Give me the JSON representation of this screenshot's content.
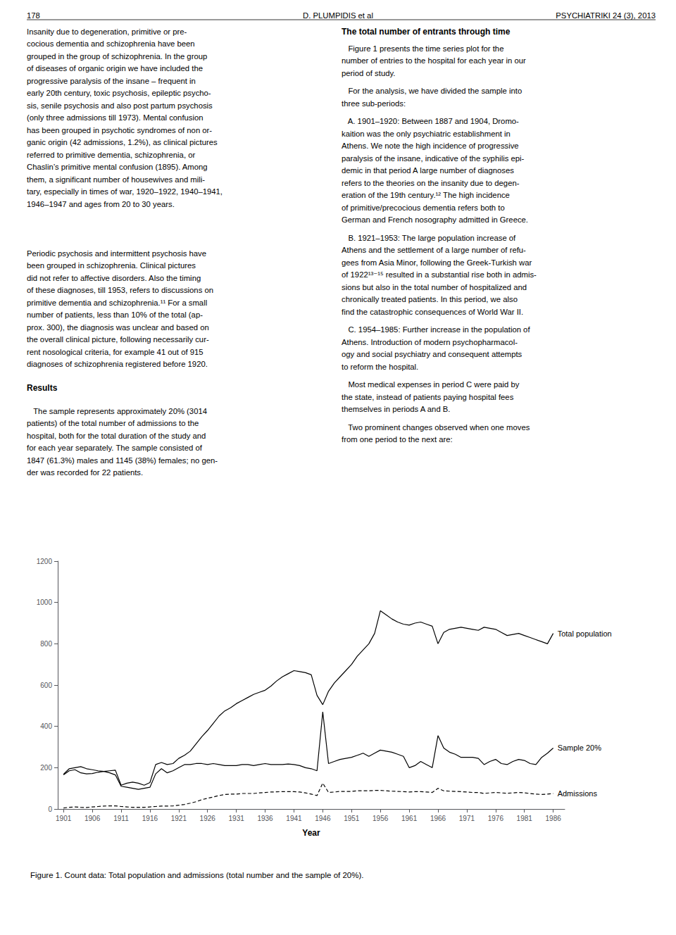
{
  "chart_data": {
    "type": "line",
    "title": "Figure 1. Count data: Total population and admissions (total number and the sample of 20%).",
    "x_label": "Year",
    "x": [
      1901,
      1902,
      1903,
      1904,
      1905,
      1906,
      1907,
      1908,
      1909,
      1910,
      1911,
      1912,
      1913,
      1914,
      1915,
      1916,
      1917,
      1918,
      1919,
      1920,
      1921,
      1922,
      1923,
      1924,
      1925,
      1926,
      1927,
      1928,
      1929,
      1930,
      1931,
      1932,
      1933,
      1934,
      1935,
      1936,
      1937,
      1938,
      1939,
      1940,
      1941,
      1942,
      1943,
      1944,
      1945,
      1946,
      1947,
      1948,
      1949,
      1950,
      1951,
      1952,
      1953,
      1954,
      1955,
      1956,
      1957,
      1958,
      1959,
      1960,
      1961,
      1962,
      1963,
      1964,
      1965,
      1966,
      1967,
      1968,
      1969,
      1970,
      1971,
      1972,
      1973,
      1974,
      1975,
      1976,
      1977,
      1978,
      1979,
      1980,
      1981,
      1982,
      1983,
      1984,
      1985,
      1986
    ],
    "series": [
      {
        "name": "Total population",
        "color": "#000000",
        "line_style": "solid",
        "values": [
          165,
          185,
          190,
          175,
          170,
          172,
          178,
          182,
          185,
          188,
          115,
          125,
          130,
          125,
          115,
          128,
          215,
          225,
          215,
          220,
          245,
          260,
          280,
          315,
          350,
          380,
          415,
          450,
          475,
          490,
          510,
          525,
          540,
          555,
          565,
          575,
          595,
          620,
          640,
          655,
          670,
          665,
          660,
          650,
          550,
          505,
          570,
          610,
          640,
          670,
          700,
          740,
          770,
          800,
          850,
          960,
          940,
          920,
          905,
          895,
          890,
          900,
          905,
          895,
          885,
          800,
          855,
          870,
          875,
          880,
          875,
          870,
          865,
          880,
          875,
          870,
          855,
          840,
          845,
          850,
          840,
          830,
          820,
          810,
          800,
          850
        ]
      },
      {
        "name": "Sample 20%",
        "color": "#000000",
        "line_style": "solid",
        "values": [
          168,
          195,
          200,
          205,
          195,
          190,
          185,
          182,
          175,
          165,
          110,
          105,
          100,
          95,
          100,
          105,
          170,
          195,
          175,
          185,
          200,
          215,
          215,
          220,
          220,
          215,
          220,
          215,
          210,
          210,
          210,
          215,
          215,
          210,
          215,
          220,
          215,
          215,
          215,
          218,
          215,
          210,
          200,
          195,
          185,
          470,
          220,
          230,
          240,
          245,
          250,
          260,
          270,
          255,
          270,
          285,
          280,
          275,
          265,
          255,
          200,
          210,
          230,
          215,
          200,
          355,
          295,
          275,
          265,
          250,
          250,
          250,
          245,
          215,
          230,
          240,
          220,
          215,
          230,
          240,
          235,
          220,
          215,
          250,
          270,
          295
        ]
      },
      {
        "name": "Admissions",
        "color": "#000000",
        "line_style": "dashed",
        "values": [
          5,
          8,
          10,
          8,
          7,
          10,
          12,
          14,
          15,
          15,
          12,
          10,
          8,
          8,
          8,
          10,
          12,
          14,
          14,
          15,
          18,
          22,
          28,
          35,
          45,
          52,
          58,
          65,
          70,
          72,
          72,
          75,
          75,
          75,
          78,
          80,
          82,
          83,
          84,
          84,
          84,
          82,
          78,
          72,
          65,
          125,
          80,
          82,
          85,
          85,
          85,
          88,
          88,
          88,
          90,
          90,
          88,
          86,
          85,
          84,
          82,
          84,
          84,
          82,
          80,
          100,
          88,
          86,
          85,
          84,
          82,
          80,
          80,
          75,
          78,
          80,
          78,
          76,
          78,
          80,
          78,
          75,
          72,
          70,
          72,
          75
        ]
      }
    ],
    "xlim": [
      1900,
      1988
    ],
    "xticks": [
      1901,
      1906,
      1911,
      1916,
      1921,
      1926,
      1931,
      1936,
      1941,
      1946,
      1951,
      1956,
      1961,
      1966,
      1971,
      1976,
      1981,
      1986
    ],
    "ylim": [
      0,
      1200
    ],
    "yticks": [
      0,
      200,
      400,
      600,
      800,
      1000,
      1200
    ],
    "grid": false,
    "annotations": [
      "178",
      "D. PLUMPIDIS et al",
      "PSYCHIATRIKI 24 (3), 2013",
      "Insanity due to degeneration, primitive or pre-\ncocious dementia and schizophrenia have been\ngrouped in the group of schizophrenia. In the group\nof diseases of organic origin we have included the\nprogressive paralysis of the insane – frequent in\nearly 20th century, toxic psychosis, epileptic psycho-\nsis, senile psychosis and also post partum psychosis\n(only three admissions till 1973). Mental confusion\nhas been grouped in psychotic syndromes of non or-\nganic origin (42 admissions, 1.2%), as clinical pictures\nreferred to primitive dementia, schizophrenia, or\nChaslin’s primitive mental confusion (1895). Among\nthem, a significant number of housewives and mili-\ntary, especially in times of war, 1920–1922, 1940–1941,\n1946–1947 and ages from 20 to 30 years.",
      "Periodic psychosis and intermittent psychosis have\nbeen grouped in schizophrenia. Clinical pictures\ndid not refer to affective disorders. Also the timing\nof these diagnoses, till 1953, refers to discussions on\nprimitive dementia and schizophrenia.¹¹ For a small\nnumber of patients, less than 10% of the total (ap-\nprox. 300), the diagnosis was unclear and based on\nthe overall clinical picture, following necessarily cur-\nrent nosological criteria, for example 41 out of 915\ndiagnoses of schizophrenia registered before 1920.",
      "Results",
      "   The sample represents approximately 20% (3014\npatients) of the total number of admissions to the\nhospital, both for the total duration of the study and\nfor each year separately. The sample consisted of\n1847 (61.3%) males and 1145 (38%) females; no gen-\nder was recorded for 22 patients.",
      "The total number of entrants through time",
      "   Figure 1 presents the time series plot for the\nnumber of entries to the hospital for each year in our\nperiod of study.",
      "   For the analysis, we have divided the sample into\nthree sub-periods:",
      "   A. 1901–1920: Between 1887 and 1904, Dromo-\nkaition was the only psychiatric establishment in\nAthens. We note the high incidence of progressive\nparalysis of the insane, indicative of the syphilis epi-\ndemic in that period A large number of diagnoses\nrefers to the theories on the insanity due to degen-\neration of the 19th century.¹² The high incidence\nof primitive/precocious dementia refers both to\nGerman and French nosography admitted in Greece.",
      "   B. 1921–1953: The large population increase of\nAthens and the settlement of a large number of refu-\ngees from Asia Minor, following the Greek-Turkish war\nof 1922¹³⁻¹⁵ resulted in a substantial rise both in admis-\nsions but also in the total number of hospitalized and\nchronically treated patients. In this period, we also\nfind the catastrophic consequences of World War II.",
      "   C. 1954–1985: Further increase in the population of\nAthens. Introduction of modern psychopharmacol-\nogy and social psychiatry and consequent attempts\nto reform the hospital.",
      "   Most medical expenses in period C were paid by\nthe state, instead of patients paying hospital fees\nthemselves in periods A and B.",
      "   Two prominent changes observed when one moves\nfrom one period to the next are:"
    ]
  }
}
